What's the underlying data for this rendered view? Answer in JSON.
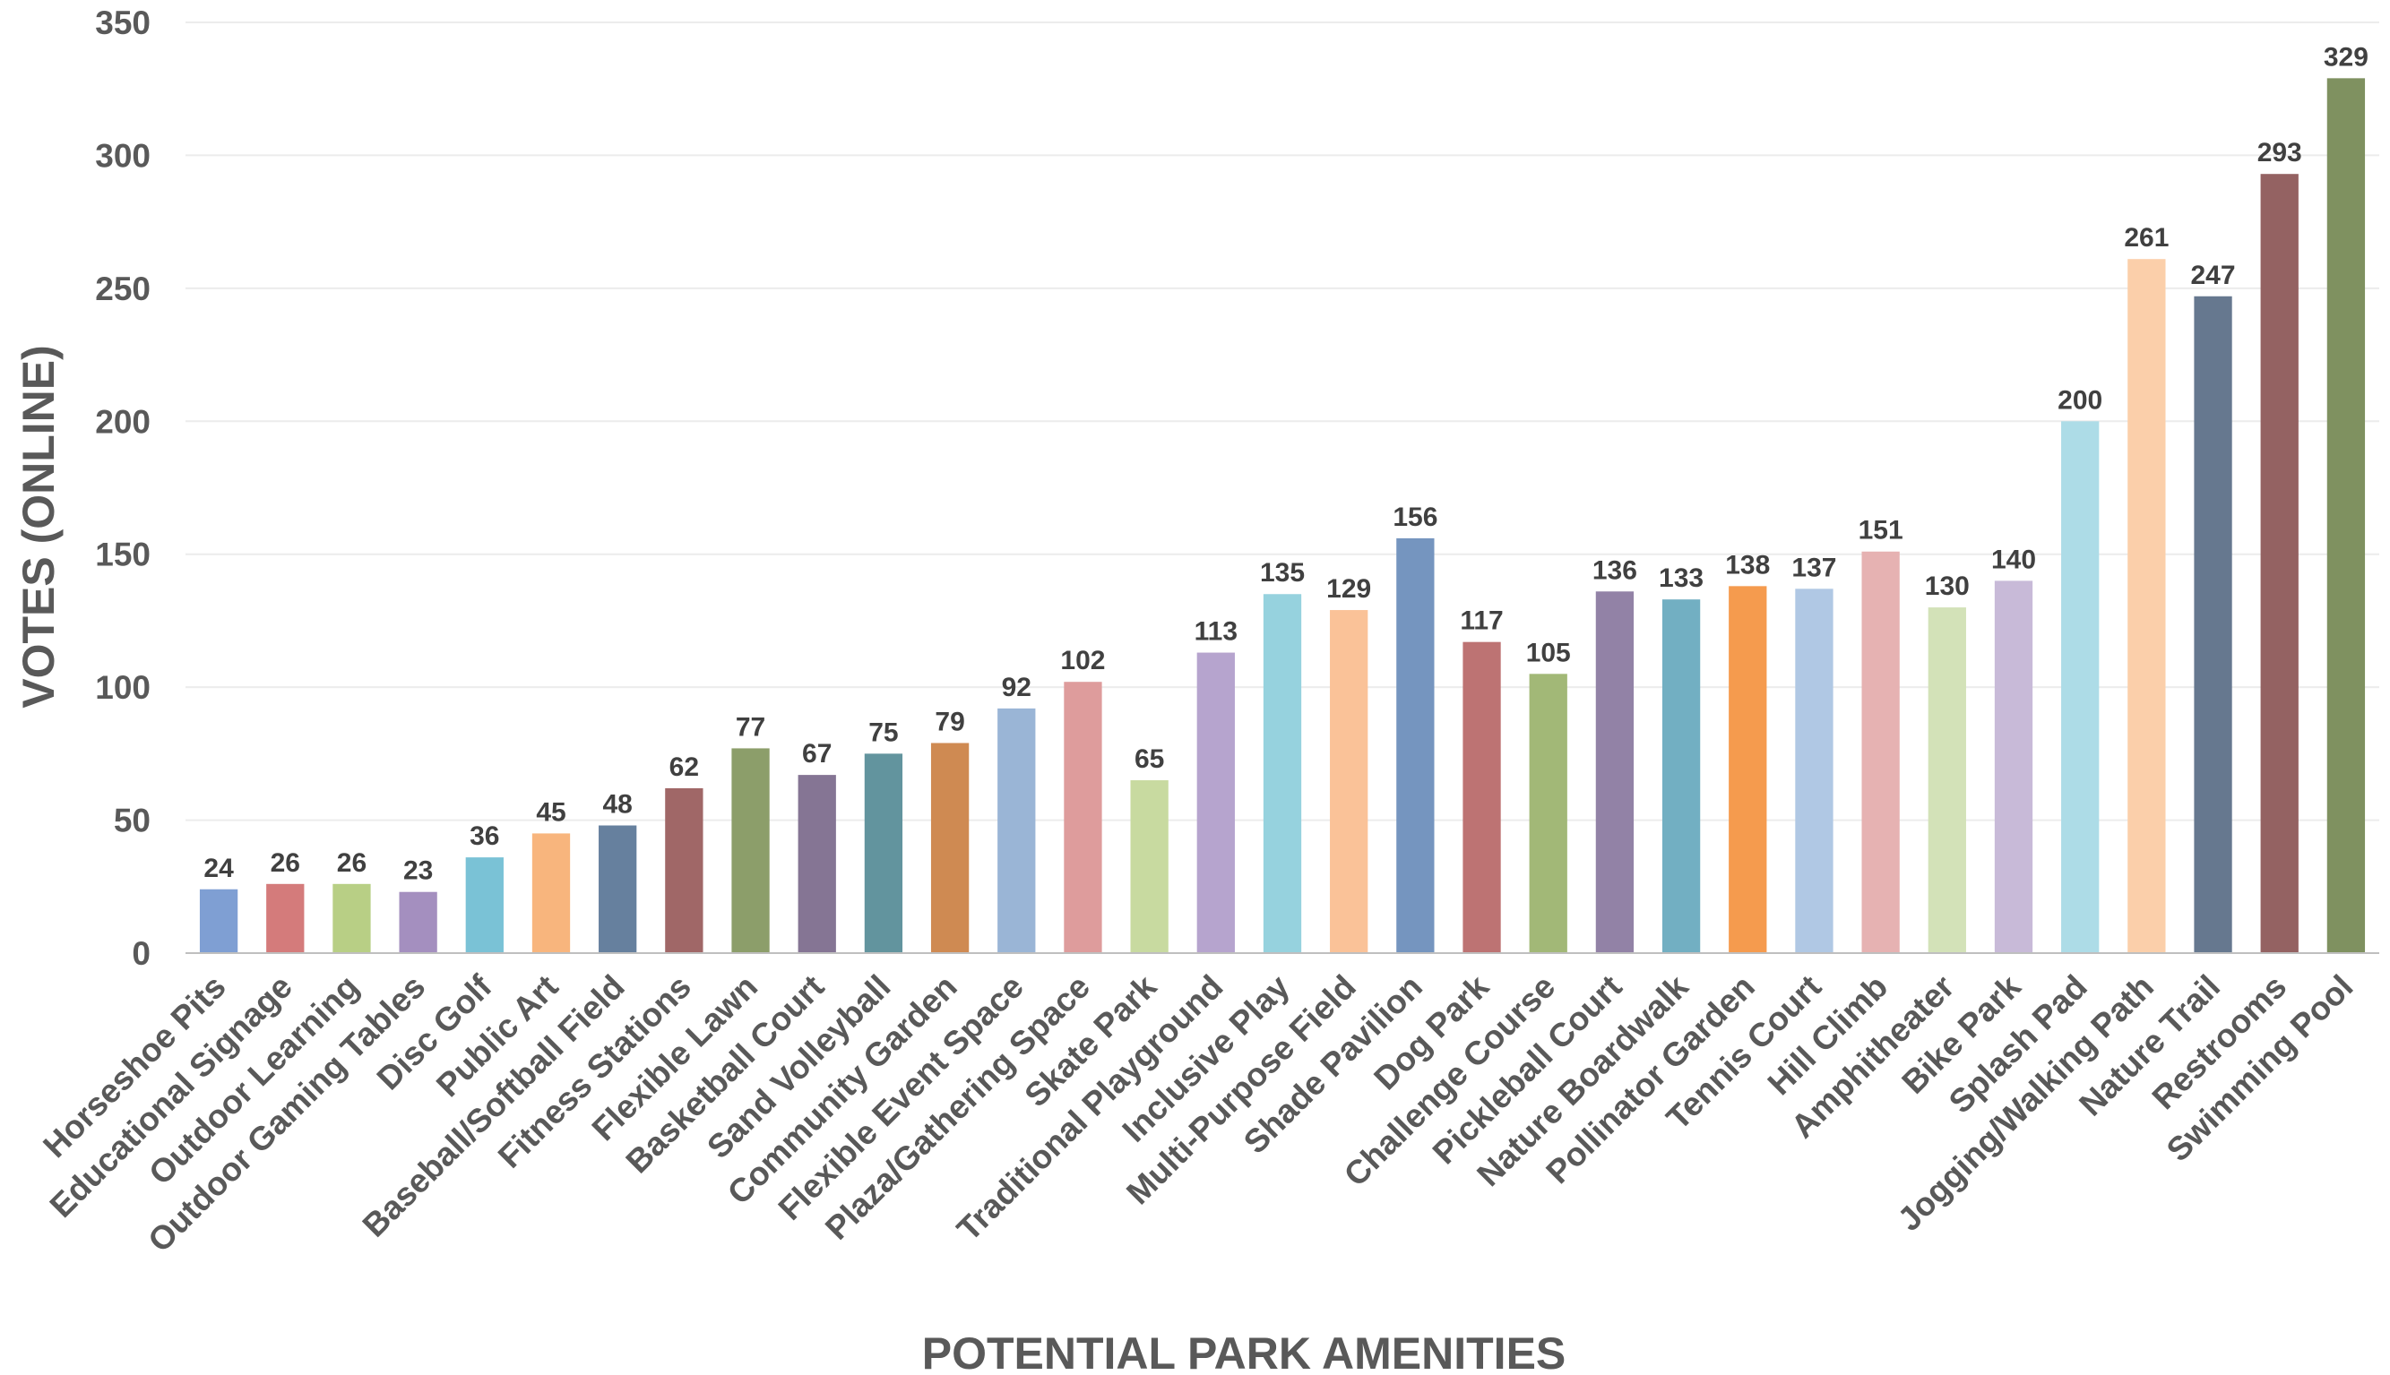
{
  "chart_data": {
    "type": "bar",
    "title": "",
    "xlabel": "POTENTIAL PARK AMENITIES",
    "ylabel": "VOTES (ONLINE)",
    "ylim": [
      0,
      350
    ],
    "yticks": [
      0,
      50,
      100,
      150,
      200,
      250,
      300,
      350
    ],
    "grid": true,
    "legend": "none",
    "categories": [
      "Horseshoe Pits",
      "Educational Signage",
      "Outdoor Learning",
      "Outdoor Gaming Tables",
      "Disc Golf",
      "Public Art",
      "Baseball/Softball Field",
      "Fitness Stations",
      "Flexible Lawn",
      "Basketball Court",
      "Sand Volleyball",
      "Community Garden",
      "Flexible Event Space",
      "Plaza/Gathering Space",
      "Skate Park",
      "Traditional Playground",
      "Inclusive Play",
      "Multi-Purpose Field",
      "Shade Pavilion",
      "Dog Park",
      "Challenge Course",
      "Pickleball Court",
      "Nature Boardwalk",
      "Pollinator Garden",
      "Tennis Court",
      "Hill Climb",
      "Amphitheater",
      "Bike Park",
      "Splash Pad",
      "Jogging/Walking Path",
      "Nature Trail",
      "Restrooms",
      "Swimming Pool"
    ],
    "values": [
      24,
      26,
      26,
      23,
      36,
      45,
      48,
      62,
      77,
      67,
      75,
      79,
      92,
      102,
      65,
      113,
      135,
      129,
      156,
      117,
      105,
      136,
      133,
      138,
      137,
      151,
      130,
      140,
      200,
      261,
      247,
      293,
      329
    ],
    "colors": [
      "#7F9FD3",
      "#D47B7B",
      "#B8CF85",
      "#A48FBF",
      "#7AC2D6",
      "#F8B57D",
      "#66809E",
      "#A06767",
      "#8C9E6A",
      "#857594",
      "#62949E",
      "#CF8A52",
      "#9AB5D6",
      "#DE9C9C",
      "#C8DAA0",
      "#B6A4CE",
      "#96D2DE",
      "#FAC298",
      "#7595BF",
      "#BD7373",
      "#A2B877",
      "#9282A6",
      "#72AFC2",
      "#F59B4E",
      "#B0C8E4",
      "#E6B2B2",
      "#D3E2B8",
      "#C8BAD8",
      "#ADDCE7",
      "#FBCFAA",
      "#66788F",
      "#946262",
      "#7F9160"
    ]
  }
}
